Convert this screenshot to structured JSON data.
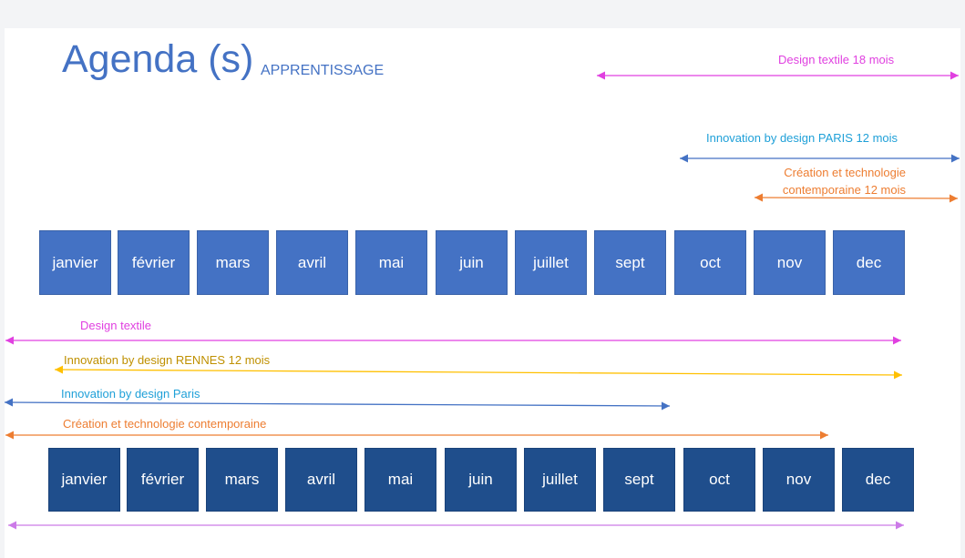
{
  "title": {
    "main": "Agenda (s)",
    "sub": "APPRENTISSAGE"
  },
  "colors": {
    "month_row_1": "#4472c4",
    "month_row_2": "#1f4e8c",
    "design_textile": "#e040e0",
    "innovation_paris": "#1fa0d8",
    "innovation_paris_arrow": "#4472c4",
    "creation": "#ed7d31",
    "innovation_rennes_text": "#bf9000",
    "innovation_rennes_arrow": "#ffc000",
    "bottom_arrow": "#cc7ae8"
  },
  "months_row_1": [
    "janvier",
    "février",
    "mars",
    "avril",
    "mai",
    "juin",
    "juillet",
    "sept",
    "oct",
    "nov",
    "dec"
  ],
  "months_row_2": [
    "janvier",
    "février",
    "mars",
    "avril",
    "mai",
    "juin",
    "juillet",
    "sept",
    "oct",
    "nov",
    "dec"
  ],
  "programs_top": [
    {
      "label": "Design textile 18 mois"
    },
    {
      "label": "Innovation by design PARIS 12 mois"
    },
    {
      "label_line1": "Création et technologie",
      "label_line2": "contemporaine 12 mois"
    }
  ],
  "programs_bottom": [
    {
      "label": "Design textile"
    },
    {
      "label": "Innovation by design RENNES 12 mois"
    },
    {
      "label": "Innovation by design Paris"
    },
    {
      "label": "Création et technologie contemporaine"
    }
  ]
}
